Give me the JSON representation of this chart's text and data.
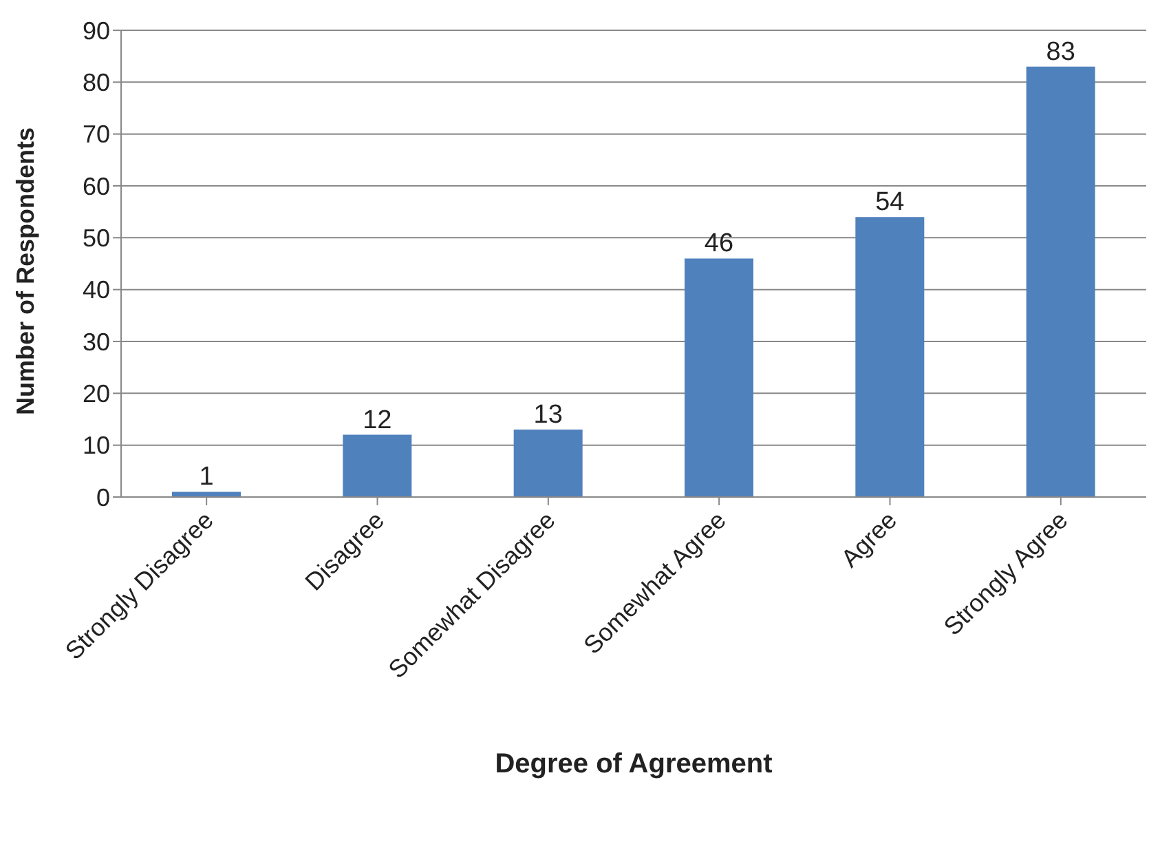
{
  "chart_data": {
    "type": "bar",
    "xlabel": "Degree of Agreement",
    "ylabel": "Number of Respondents",
    "categories": [
      "Strongly Disagree",
      "Disagree",
      "Somewhat Disagree",
      "Somewhat Agree",
      "Agree",
      "Strongly Agree"
    ],
    "values": [
      1,
      12,
      13,
      46,
      54,
      83
    ],
    "color": "#4f81bd",
    "ylim": [
      0,
      90
    ],
    "yticks": [
      0,
      10,
      20,
      30,
      40,
      50,
      60,
      70,
      80,
      90
    ],
    "grid": "y",
    "data_labels": true
  }
}
